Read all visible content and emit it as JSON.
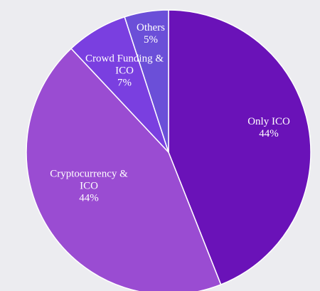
{
  "chart_data": {
    "type": "pie",
    "categories": [
      "Only ICO",
      "Cryptocurrency & ICO",
      "Crowd Funding & ICO",
      "Others"
    ],
    "values": [
      44,
      44,
      7,
      5
    ],
    "value_labels": [
      "44%",
      "44%",
      "7%",
      "5%"
    ],
    "colors": [
      "#6a12b8",
      "#9a4cd2",
      "#7a3fe0",
      "#6b4fd8"
    ]
  }
}
